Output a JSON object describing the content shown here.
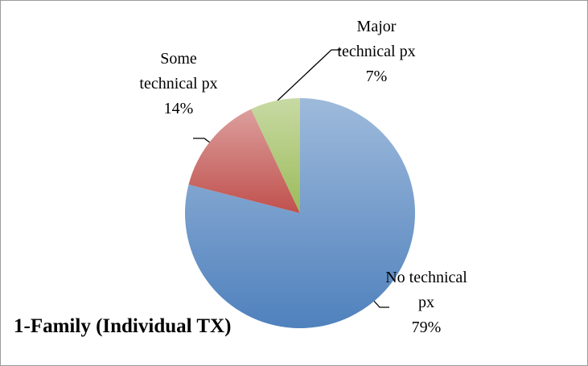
{
  "chart_data": {
    "type": "pie",
    "title": "1-Family (Individual TX)",
    "categories": [
      "No technical px",
      "Some technical px",
      "Major technical px"
    ],
    "values": [
      79,
      14,
      7
    ],
    "value_labels": [
      "79%",
      "14%",
      "7%"
    ],
    "colors": [
      "#4f81bd",
      "#c0504d",
      "#9bbb59"
    ]
  }
}
